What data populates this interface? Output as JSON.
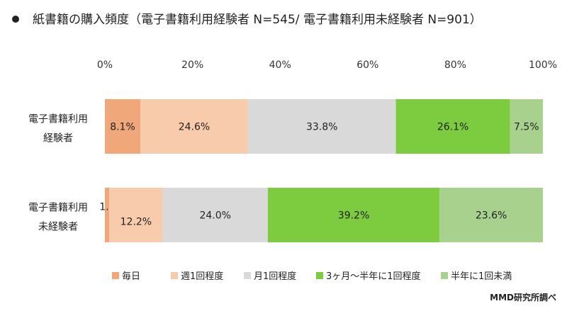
{
  "title": "紙書籍の購入頻度（電子書籍利用経験者 N=545/ 電子書籍利用未経験者 N=901）",
  "source": "MMD研究所調べ",
  "chart_data": {
    "type": "bar",
    "orientation": "horizontal",
    "stacked": "percent",
    "categories": [
      [
        "電子書籍利用",
        "経験者"
      ],
      [
        "電子書籍利用",
        "未経験者"
      ]
    ],
    "xlim": [
      0,
      100
    ],
    "xticks": [
      "0%",
      "20%",
      "40%",
      "60%",
      "80%",
      "100%"
    ],
    "grid": false,
    "legend_position": "bottom",
    "series": [
      {
        "name": "毎日",
        "color": "#F0A77A",
        "values": [
          8.1,
          1.0
        ],
        "labels": [
          "8.1%",
          "1.0%"
        ]
      },
      {
        "name": "週1回程度",
        "color": "#F8CBAD",
        "values": [
          24.6,
          12.2
        ],
        "labels": [
          "24.6%",
          "12.2%"
        ]
      },
      {
        "name": "月1回程度",
        "color": "#D9D9D9",
        "values": [
          33.8,
          24.0
        ],
        "labels": [
          "33.8%",
          "24.0%"
        ]
      },
      {
        "name": "3ヶ月〜半年に1回程度",
        "color": "#7DCB3E",
        "values": [
          26.1,
          39.2
        ],
        "labels": [
          "26.1%",
          "39.2%"
        ]
      },
      {
        "name": "半年に1回未満",
        "color": "#A9D18E",
        "values": [
          7.5,
          23.6
        ],
        "labels": [
          "7.5%",
          "23.6%"
        ]
      }
    ]
  }
}
